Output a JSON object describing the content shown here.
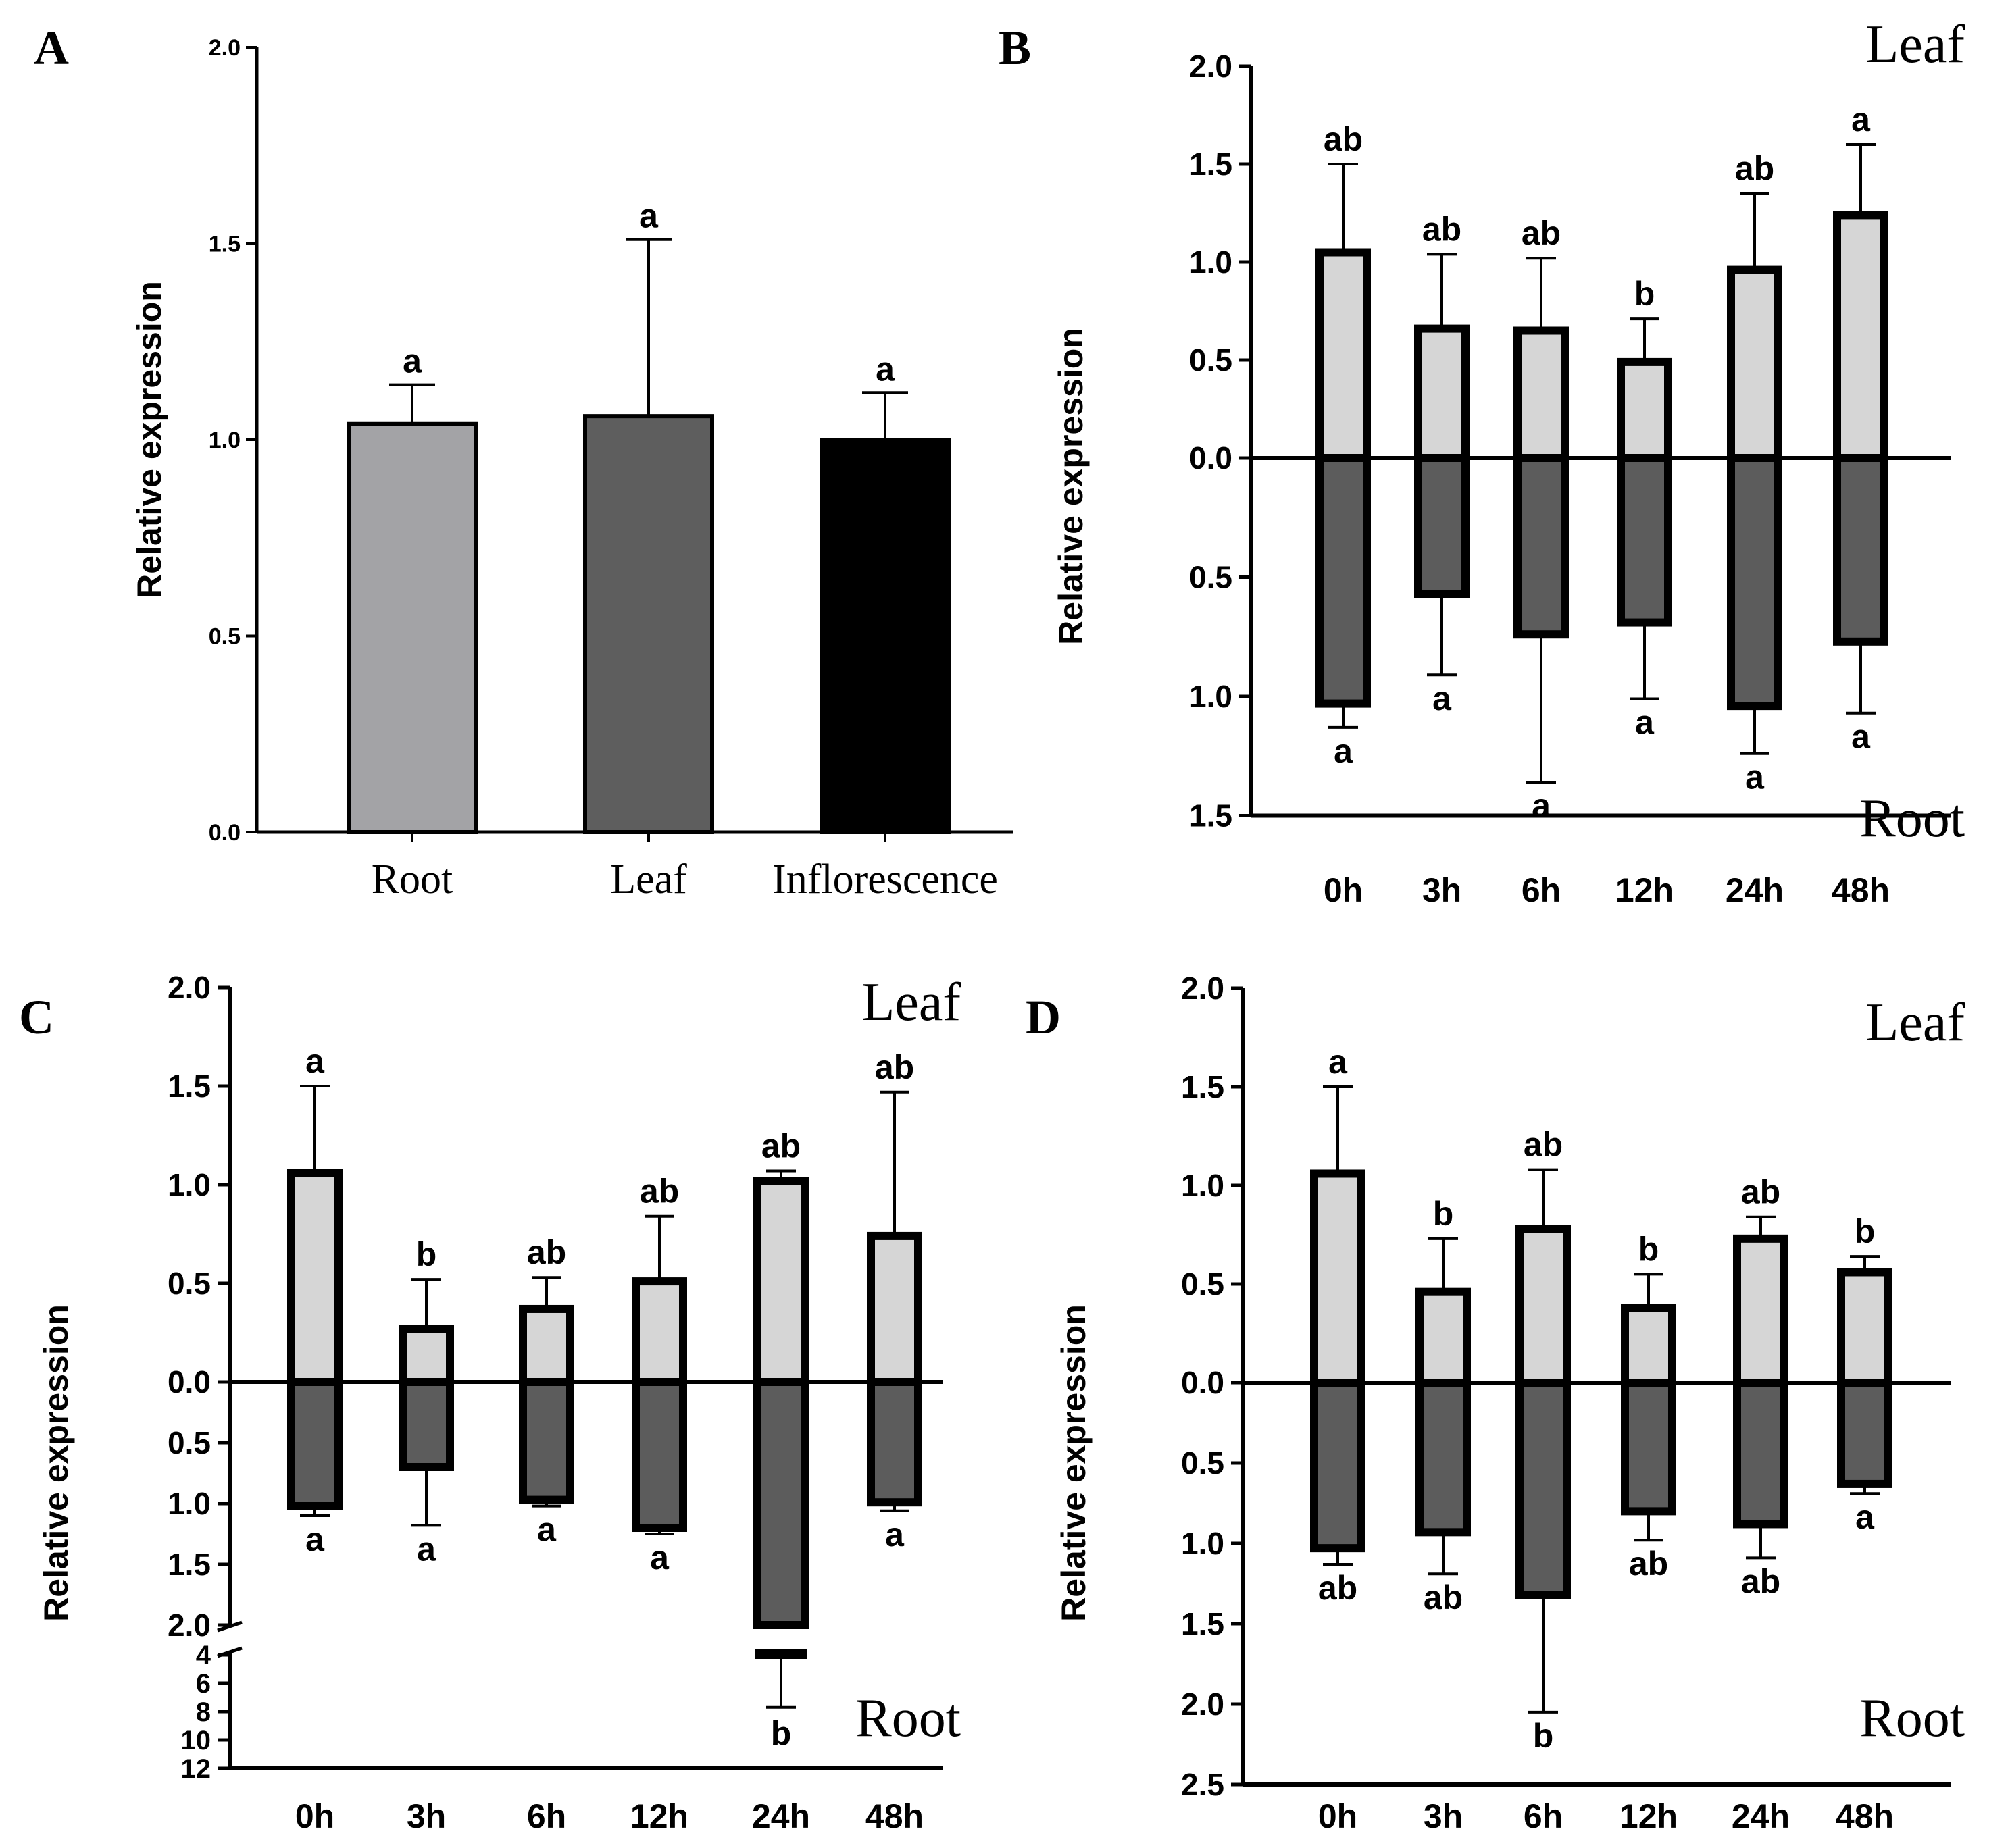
{
  "chart_data": [
    {
      "panel": "A",
      "type": "bar",
      "ylabel": "Relative expression",
      "categories": [
        "Root",
        "Leaf",
        "Inflorescence"
      ],
      "values": [
        1.04,
        1.06,
        1.0
      ],
      "errors": [
        0.1,
        0.45,
        0.12
      ],
      "significance": [
        "a",
        "a",
        "a"
      ],
      "colors": [
        "#a3a3a6",
        "#5e5e5e",
        "#000000"
      ],
      "ylim": [
        0,
        2.0
      ],
      "yticks": [
        "0.0",
        "0.5",
        "1.0",
        "1.5",
        "2.0"
      ]
    },
    {
      "panel": "B",
      "type": "bar",
      "ylabel": "Relative expression",
      "categories": [
        "0h",
        "3h",
        "6h",
        "12h",
        "24h",
        "48h"
      ],
      "upper_label": "Leaf",
      "lower_label": "Root",
      "series": [
        {
          "name": "Leaf",
          "values": [
            1.05,
            0.66,
            0.65,
            0.49,
            0.96,
            1.24
          ],
          "errors": [
            0.45,
            0.38,
            0.37,
            0.22,
            0.39,
            0.36
          ],
          "significance": [
            "ab",
            "ab",
            "ab",
            "b",
            "ab",
            "a"
          ],
          "color": "#d6d6d6"
        },
        {
          "name": "Root",
          "values": [
            1.03,
            0.57,
            0.74,
            0.69,
            1.04,
            0.77
          ],
          "errors": [
            0.1,
            0.34,
            0.62,
            0.32,
            0.2,
            0.3
          ],
          "significance": [
            "a",
            "a",
            "a",
            "a",
            "a",
            "a"
          ],
          "color": "#5c5c5c"
        }
      ],
      "upper_ylim": [
        0,
        2.0
      ],
      "lower_ylim": [
        0,
        1.5
      ],
      "upper_yticks": [
        "0.0",
        "0.5",
        "1.0",
        "1.5",
        "2.0"
      ],
      "lower_yticks": [
        "0.5",
        "1.0",
        "1.5"
      ]
    },
    {
      "panel": "C",
      "type": "bar",
      "ylabel": "Relative expression",
      "categories": [
        "0h",
        "3h",
        "6h",
        "12h",
        "24h",
        "48h"
      ],
      "upper_label": "Leaf",
      "lower_label": "Root",
      "series": [
        {
          "name": "Leaf",
          "values": [
            1.06,
            0.27,
            0.37,
            0.51,
            1.02,
            0.74
          ],
          "errors": [
            0.44,
            0.25,
            0.16,
            0.33,
            0.05,
            0.73
          ],
          "significance": [
            "a",
            "b",
            "ab",
            "ab",
            "ab",
            "ab"
          ],
          "color": "#d6d6d6"
        },
        {
          "name": "Root",
          "values": [
            1.02,
            0.7,
            0.97,
            1.2,
            4.1,
            0.99
          ],
          "errors": [
            0.08,
            0.48,
            0.05,
            0.05,
            3.6,
            0.07
          ],
          "significance": [
            "a",
            "a",
            "a",
            "a",
            "b",
            "a"
          ],
          "color": "#5c5c5c"
        }
      ],
      "upper_ylim": [
        0,
        2.0
      ],
      "lower_ylim": [
        0,
        12
      ],
      "lower_axis_break": [
        2.0,
        4
      ],
      "upper_yticks": [
        "0.0",
        "0.5",
        "1.0",
        "1.5",
        "2.0"
      ],
      "lower_yticks": [
        "0.5",
        "1.0",
        "1.5",
        "2.0",
        "4",
        "6",
        "8",
        "10",
        "12"
      ]
    },
    {
      "panel": "D",
      "type": "bar",
      "ylabel": "Relative expression",
      "categories": [
        "0h",
        "3h",
        "6h",
        "12h",
        "24h",
        "48h"
      ],
      "upper_label": "Leaf",
      "lower_label": "Root",
      "series": [
        {
          "name": "Leaf",
          "values": [
            1.06,
            0.46,
            0.78,
            0.38,
            0.73,
            0.56
          ],
          "errors": [
            0.44,
            0.27,
            0.3,
            0.17,
            0.11,
            0.08
          ],
          "significance": [
            "a",
            "b",
            "ab",
            "b",
            "ab",
            "b"
          ],
          "color": "#d6d6d6"
        },
        {
          "name": "Root",
          "values": [
            1.03,
            0.93,
            1.32,
            0.8,
            0.88,
            0.63
          ],
          "errors": [
            0.1,
            0.26,
            0.73,
            0.18,
            0.21,
            0.06
          ],
          "significance": [
            "ab",
            "ab",
            "b",
            "ab",
            "ab",
            "a"
          ],
          "color": "#5c5c5c"
        }
      ],
      "upper_ylim": [
        0,
        2.0
      ],
      "lower_ylim": [
        0,
        2.5
      ],
      "upper_yticks": [
        "0.0",
        "0.5",
        "1.0",
        "1.5",
        "2.0"
      ],
      "lower_yticks": [
        "0.5",
        "1.0",
        "1.5",
        "2.0",
        "2.5"
      ]
    }
  ]
}
